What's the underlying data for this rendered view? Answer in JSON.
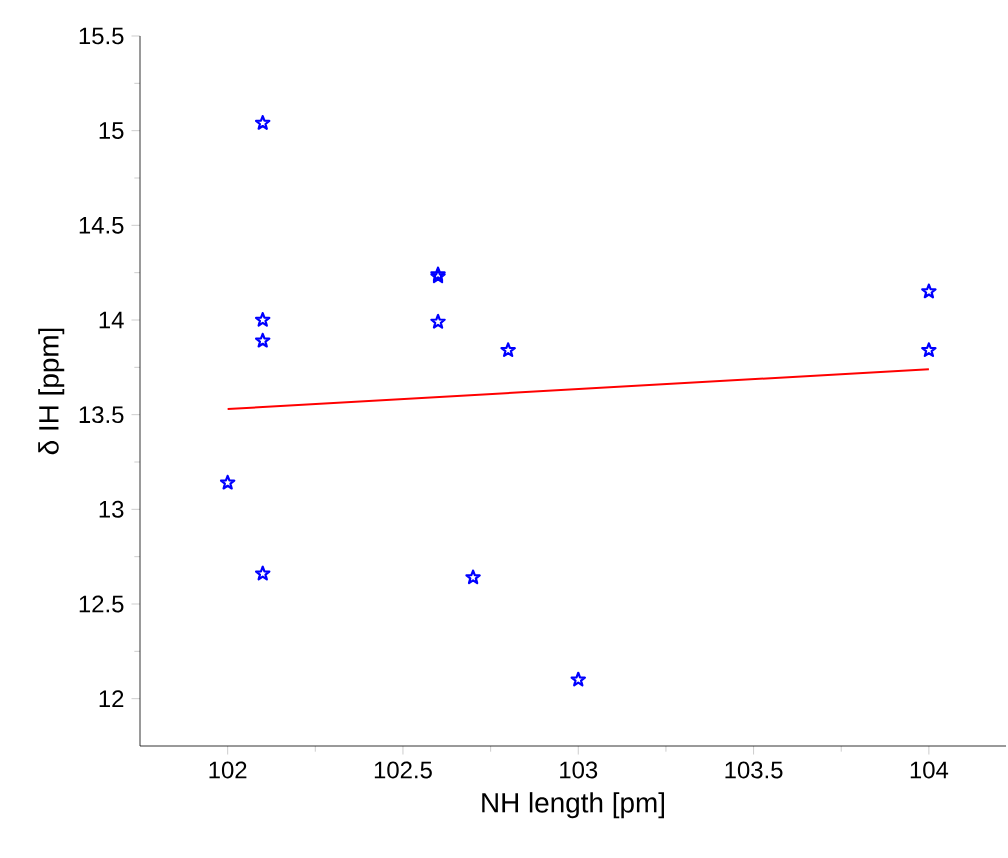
{
  "chart_data": {
    "type": "scatter",
    "xlabel": "NH length [pm]",
    "ylabel": "δ IH [ppm]",
    "xlim": [
      101.75,
      104.22
    ],
    "ylim": [
      11.75,
      15.5
    ],
    "xticks": [
      102,
      102.5,
      103,
      103.5,
      104
    ],
    "yticks": [
      12,
      12.5,
      13,
      13.5,
      14,
      14.5,
      15,
      15.5
    ],
    "grid": false,
    "series": [
      {
        "marker": "star",
        "color": "#0000ff",
        "x": [
          102.0,
          102.1,
          102.1,
          102.1,
          102.1,
          102.6,
          102.6,
          102.6,
          102.7,
          102.8,
          103.0,
          104.0,
          104.0
        ],
        "values": [
          13.14,
          12.66,
          13.89,
          14.0,
          15.04,
          14.23,
          14.24,
          13.99,
          12.64,
          13.84,
          12.1,
          14.15,
          13.84
        ]
      },
      {
        "type": "line",
        "marker": "none",
        "color": "#ff0000",
        "x": [
          102.0,
          104.0
        ],
        "values": [
          13.53,
          13.74
        ]
      }
    ]
  }
}
